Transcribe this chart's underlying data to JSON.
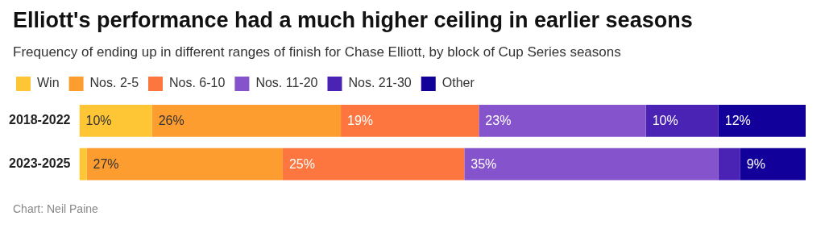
{
  "chart_data": {
    "type": "bar",
    "orientation": "horizontal",
    "stacked": true,
    "title": "Elliott's performance had a much higher ceiling in earlier seasons",
    "subtitle": "Frequency of ending up in different ranges of finish for Chase Elliott, by block of Cup Series seasons",
    "annotations": [
      "Chart: Neil Paine"
    ],
    "categories": [
      "2018-2022",
      "2023-2025"
    ],
    "xlim": [
      0,
      100
    ],
    "legend": "top left",
    "series": [
      {
        "name": "Win",
        "color": "#fec535",
        "values": [
          10,
          1
        ],
        "value_labels": [
          "10%",
          null
        ]
      },
      {
        "name": "Nos. 2-5",
        "color": "#fd9c2f",
        "values": [
          26,
          27
        ],
        "value_labels": [
          "26%",
          "27%"
        ]
      },
      {
        "name": "Nos. 6-10",
        "color": "#fe763f",
        "values": [
          19,
          25
        ],
        "value_labels": [
          "19%",
          "25%"
        ]
      },
      {
        "name": "Nos. 11-20",
        "color": "#8553cc",
        "values": [
          23,
          35
        ],
        "value_labels": [
          "23%",
          "35%"
        ]
      },
      {
        "name": "Nos. 21-30",
        "color": "#4a23b4",
        "values": [
          10,
          3
        ],
        "value_labels": [
          "10%",
          null
        ]
      },
      {
        "name": "Other",
        "color": "#11009a",
        "values": [
          12,
          9
        ],
        "value_labels": [
          "12%",
          "9%"
        ]
      }
    ]
  }
}
